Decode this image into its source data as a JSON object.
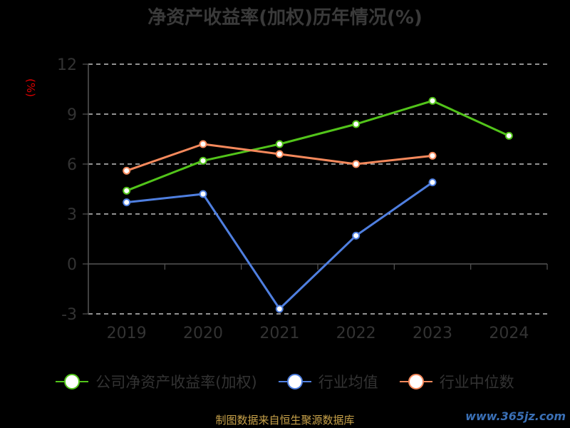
{
  "chart_data": {
    "type": "line",
    "title": "净资产收益率(加权)历年情况(%)",
    "ylabel": "(%)",
    "categories": [
      "2019",
      "2020",
      "2021",
      "2022",
      "2023",
      "2024"
    ],
    "ylim": [
      -3,
      12
    ],
    "yticks": [
      "12",
      "9",
      "6",
      "3",
      "0",
      "-3"
    ],
    "grid": true,
    "legend_position": "bottom",
    "series": [
      {
        "name": "公司净资产收益率(加权)",
        "color": "#52c41a",
        "values": [
          4.4,
          6.2,
          7.2,
          8.4,
          9.8,
          7.7
        ]
      },
      {
        "name": "行业均值",
        "color": "#4f7fe0",
        "values": [
          3.7,
          4.2,
          -2.7,
          1.7,
          4.9,
          null
        ]
      },
      {
        "name": "行业中位数",
        "color": "#f5895c",
        "values": [
          5.6,
          7.2,
          6.6,
          6.0,
          6.5,
          null
        ]
      }
    ]
  },
  "footer": {
    "source": "制图数据来自恒生聚源数据库",
    "watermark": "www.365jz.com"
  }
}
